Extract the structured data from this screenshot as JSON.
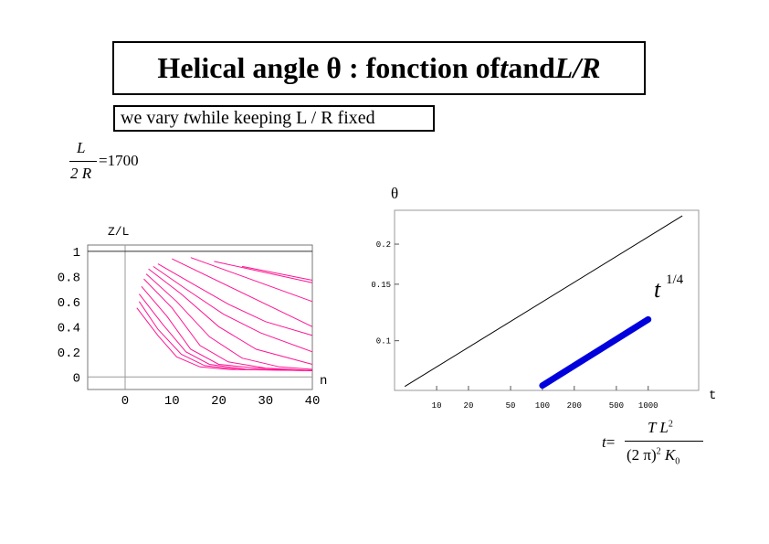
{
  "title": {
    "prefix": "Helical angle θ : fonction of ",
    "var1": "t",
    "mid": " and ",
    "var2": "L/R"
  },
  "subtitle": {
    "prefix": "we vary ",
    "var": "t",
    "suffix": " while keeping L / R fixed"
  },
  "ratio_eq": {
    "numerator": "L",
    "denominator": "2 R",
    "equals": "=",
    "value": "1700"
  },
  "t_formula": {
    "lhs": "t",
    "equals": "=",
    "numerator": "T L",
    "numerator_exp": "2",
    "denominator_open": "(2 π)",
    "denominator_exp": "2",
    "denominator_rest": "K",
    "denominator_sub": "0"
  },
  "colors": {
    "left_curves": "#ff1493",
    "right_thick": "#0000dd"
  },
  "chart_data": [
    {
      "type": "line",
      "title": "",
      "xlabel": "n",
      "ylabel": "Z/L",
      "xlim": [
        -8,
        40
      ],
      "ylim": [
        -0.1,
        1.05
      ],
      "x_ticks": [
        0,
        10,
        20,
        30,
        40
      ],
      "y_ticks": [
        0,
        0.2,
        0.4,
        0.6,
        0.8,
        1
      ],
      "x_tick_labels": [
        "0",
        "10",
        "20",
        "30",
        "40"
      ],
      "y_tick_labels": [
        "0",
        "0.2",
        "0.4",
        "0.6",
        "0.8",
        "1"
      ],
      "series": [
        {
          "x": [
            19,
            40
          ],
          "y": [
            0.92,
            0.75
          ]
        },
        {
          "x": [
            25,
            40
          ],
          "y": [
            0.88,
            0.77
          ]
        },
        {
          "x": [
            14,
            40
          ],
          "y": [
            0.95,
            0.6
          ]
        },
        {
          "x": [
            10,
            40
          ],
          "y": [
            0.94,
            0.4
          ]
        },
        {
          "x": [
            7,
            14,
            22,
            30,
            40
          ],
          "y": [
            0.9,
            0.75,
            0.58,
            0.44,
            0.33
          ]
        },
        {
          "x": [
            6,
            13,
            21,
            29,
            40
          ],
          "y": [
            0.88,
            0.7,
            0.5,
            0.35,
            0.2
          ]
        },
        {
          "x": [
            5,
            12,
            20,
            28,
            40
          ],
          "y": [
            0.86,
            0.66,
            0.4,
            0.22,
            0.1
          ]
        },
        {
          "x": [
            4.5,
            11,
            18,
            25,
            33,
            40
          ],
          "y": [
            0.82,
            0.6,
            0.32,
            0.15,
            0.08,
            0.06
          ]
        },
        {
          "x": [
            4,
            10,
            16,
            22,
            30,
            40
          ],
          "y": [
            0.78,
            0.55,
            0.25,
            0.12,
            0.07,
            0.05
          ]
        },
        {
          "x": [
            3.5,
            9,
            14,
            20,
            28,
            40
          ],
          "y": [
            0.72,
            0.48,
            0.22,
            0.1,
            0.07,
            0.05
          ]
        },
        {
          "x": [
            3,
            8,
            13,
            18,
            26,
            40
          ],
          "y": [
            0.66,
            0.42,
            0.2,
            0.1,
            0.06,
            0.05
          ]
        },
        {
          "x": [
            3,
            7,
            12,
            17,
            24,
            40
          ],
          "y": [
            0.6,
            0.38,
            0.18,
            0.09,
            0.06,
            0.05
          ]
        },
        {
          "x": [
            2.5,
            7,
            11,
            16,
            22,
            40
          ],
          "y": [
            0.55,
            0.33,
            0.16,
            0.08,
            0.06,
            0.05
          ]
        }
      ]
    },
    {
      "type": "line",
      "title": "",
      "xlabel": "t",
      "ylabel": "θ",
      "x_scale": "log",
      "y_scale": "log",
      "xlim": [
        4,
        3000
      ],
      "ylim": [
        0.07,
        0.255
      ],
      "x_ticks": [
        10,
        20,
        50,
        100,
        200,
        500,
        1000
      ],
      "x_tick_labels": [
        "10",
        "20",
        "50",
        "100",
        "200",
        "500",
        "1000"
      ],
      "y_ticks": [
        0.1,
        0.15,
        0.2
      ],
      "y_tick_labels": [
        "0.1",
        "0.15",
        "0.2"
      ],
      "annotation": {
        "base": "t",
        "exponent": "1/4"
      },
      "series": [
        {
          "style": "thin",
          "x": [
            5,
            2100
          ],
          "y": [
            0.072,
            0.245
          ]
        },
        {
          "style": "thick",
          "x": [
            100,
            1000
          ],
          "y": [
            0.0725,
            0.1165
          ]
        }
      ]
    }
  ]
}
